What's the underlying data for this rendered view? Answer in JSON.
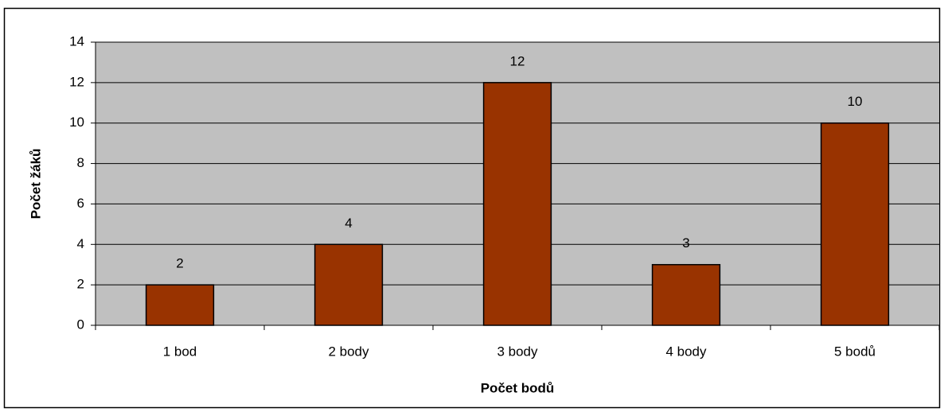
{
  "chart_data": {
    "type": "bar",
    "x_label": "Počet bodů",
    "y_label": "Počet žáků",
    "categories": [
      "1 bod",
      "2 body",
      "3 body",
      "4 body",
      "5 bodů"
    ],
    "values": [
      2,
      4,
      12,
      3,
      10
    ],
    "color": "#993300",
    "ylim": [
      0,
      14
    ],
    "yticks": [
      0,
      2,
      4,
      6,
      8,
      10,
      12,
      14
    ],
    "grid": true,
    "data_labels": true
  }
}
